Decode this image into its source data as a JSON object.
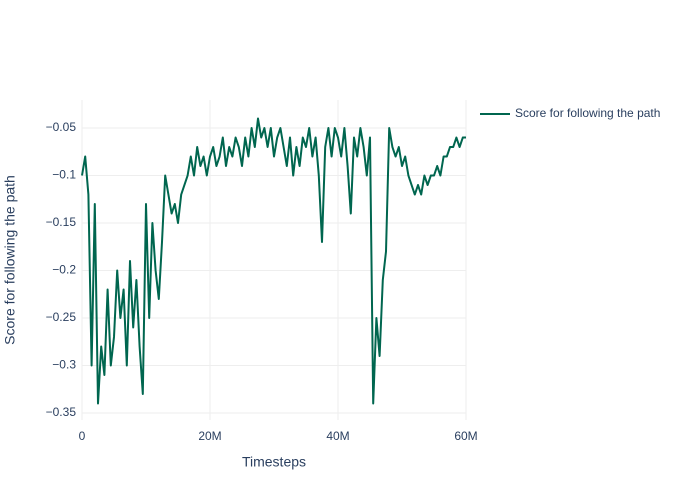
{
  "chart_data": {
    "type": "line",
    "xlabel": "Timesteps",
    "ylabel": "Score for following the path",
    "x": [
      0,
      500000,
      1000000,
      1500000,
      2000000,
      2500000,
      3000000,
      3500000,
      4000000,
      4500000,
      5000000,
      5500000,
      6000000,
      6500000,
      7000000,
      7500000,
      8000000,
      8500000,
      9000000,
      9500000,
      10000000,
      10500000,
      11000000,
      11500000,
      12000000,
      12500000,
      13000000,
      13500000,
      14000000,
      14500000,
      15000000,
      15500000,
      16000000,
      16500000,
      17000000,
      17500000,
      18000000,
      18500000,
      19000000,
      19500000,
      20000000,
      20500000,
      21000000,
      21500000,
      22000000,
      22500000,
      23000000,
      23500000,
      24000000,
      24500000,
      25000000,
      25500000,
      26000000,
      26500000,
      27000000,
      27500000,
      28000000,
      28500000,
      29000000,
      29500000,
      30000000,
      30500000,
      31000000,
      31500000,
      32000000,
      32500000,
      33000000,
      33500000,
      34000000,
      34500000,
      35000000,
      35500000,
      36000000,
      36500000,
      37000000,
      37500000,
      38000000,
      38500000,
      39000000,
      39500000,
      40000000,
      40500000,
      41000000,
      41500000,
      42000000,
      42500000,
      43000000,
      43500000,
      44000000,
      44500000,
      45000000,
      45500000,
      46000000,
      46500000,
      47000000,
      47500000,
      48000000,
      48500000,
      49000000,
      49500000,
      50000000,
      50500000,
      51000000,
      51500000,
      52000000,
      52500000,
      53000000,
      53500000,
      54000000,
      54500000,
      55000000,
      55500000,
      56000000,
      56500000,
      57000000,
      57500000,
      58000000,
      58500000,
      59000000,
      59500000,
      60000000
    ],
    "series": [
      {
        "name": "Score for following the path",
        "color": "#00664f",
        "values": [
          -0.1,
          -0.08,
          -0.12,
          -0.3,
          -0.13,
          -0.34,
          -0.28,
          -0.31,
          -0.22,
          -0.3,
          -0.27,
          -0.2,
          -0.25,
          -0.22,
          -0.3,
          -0.19,
          -0.26,
          -0.21,
          -0.28,
          -0.33,
          -0.13,
          -0.25,
          -0.15,
          -0.2,
          -0.23,
          -0.17,
          -0.1,
          -0.12,
          -0.14,
          -0.13,
          -0.15,
          -0.12,
          -0.11,
          -0.1,
          -0.08,
          -0.1,
          -0.07,
          -0.09,
          -0.08,
          -0.1,
          -0.08,
          -0.07,
          -0.09,
          -0.08,
          -0.06,
          -0.09,
          -0.07,
          -0.08,
          -0.06,
          -0.07,
          -0.09,
          -0.06,
          -0.08,
          -0.05,
          -0.07,
          -0.04,
          -0.06,
          -0.05,
          -0.07,
          -0.05,
          -0.08,
          -0.06,
          -0.05,
          -0.07,
          -0.09,
          -0.06,
          -0.1,
          -0.07,
          -0.09,
          -0.06,
          -0.07,
          -0.05,
          -0.08,
          -0.06,
          -0.1,
          -0.17,
          -0.07,
          -0.05,
          -0.08,
          -0.05,
          -0.06,
          -0.08,
          -0.05,
          -0.09,
          -0.14,
          -0.06,
          -0.08,
          -0.05,
          -0.07,
          -0.1,
          -0.06,
          -0.34,
          -0.25,
          -0.29,
          -0.21,
          -0.18,
          -0.05,
          -0.07,
          -0.08,
          -0.07,
          -0.09,
          -0.08,
          -0.1,
          -0.11,
          -0.12,
          -0.11,
          -0.12,
          -0.1,
          -0.11,
          -0.1,
          -0.1,
          -0.09,
          -0.1,
          -0.08,
          -0.08,
          -0.07,
          -0.07,
          -0.06,
          -0.07,
          -0.06,
          -0.06
        ]
      }
    ],
    "xlim": [
      0,
      60000000
    ],
    "xticks": [
      0,
      {
        "value": 20000000,
        "label": "20M"
      },
      {
        "value": 40000000,
        "label": "40M"
      },
      {
        "value": 60000000,
        "label": "60M"
      }
    ],
    "ylim": [
      -0.3574,
      -0.0205
    ],
    "yticks": [
      {
        "value": -0.35,
        "label": "−0.35"
      },
      {
        "value": -0.3,
        "label": "−0.3"
      },
      {
        "value": -0.25,
        "label": "−0.25"
      },
      {
        "value": -0.2,
        "label": "−0.2"
      },
      {
        "value": -0.15,
        "label": "−0.15"
      },
      {
        "value": -0.1,
        "label": "−0.1"
      },
      {
        "value": -0.05,
        "label": "−0.05"
      }
    ],
    "grid": true,
    "legend": "top-right"
  }
}
